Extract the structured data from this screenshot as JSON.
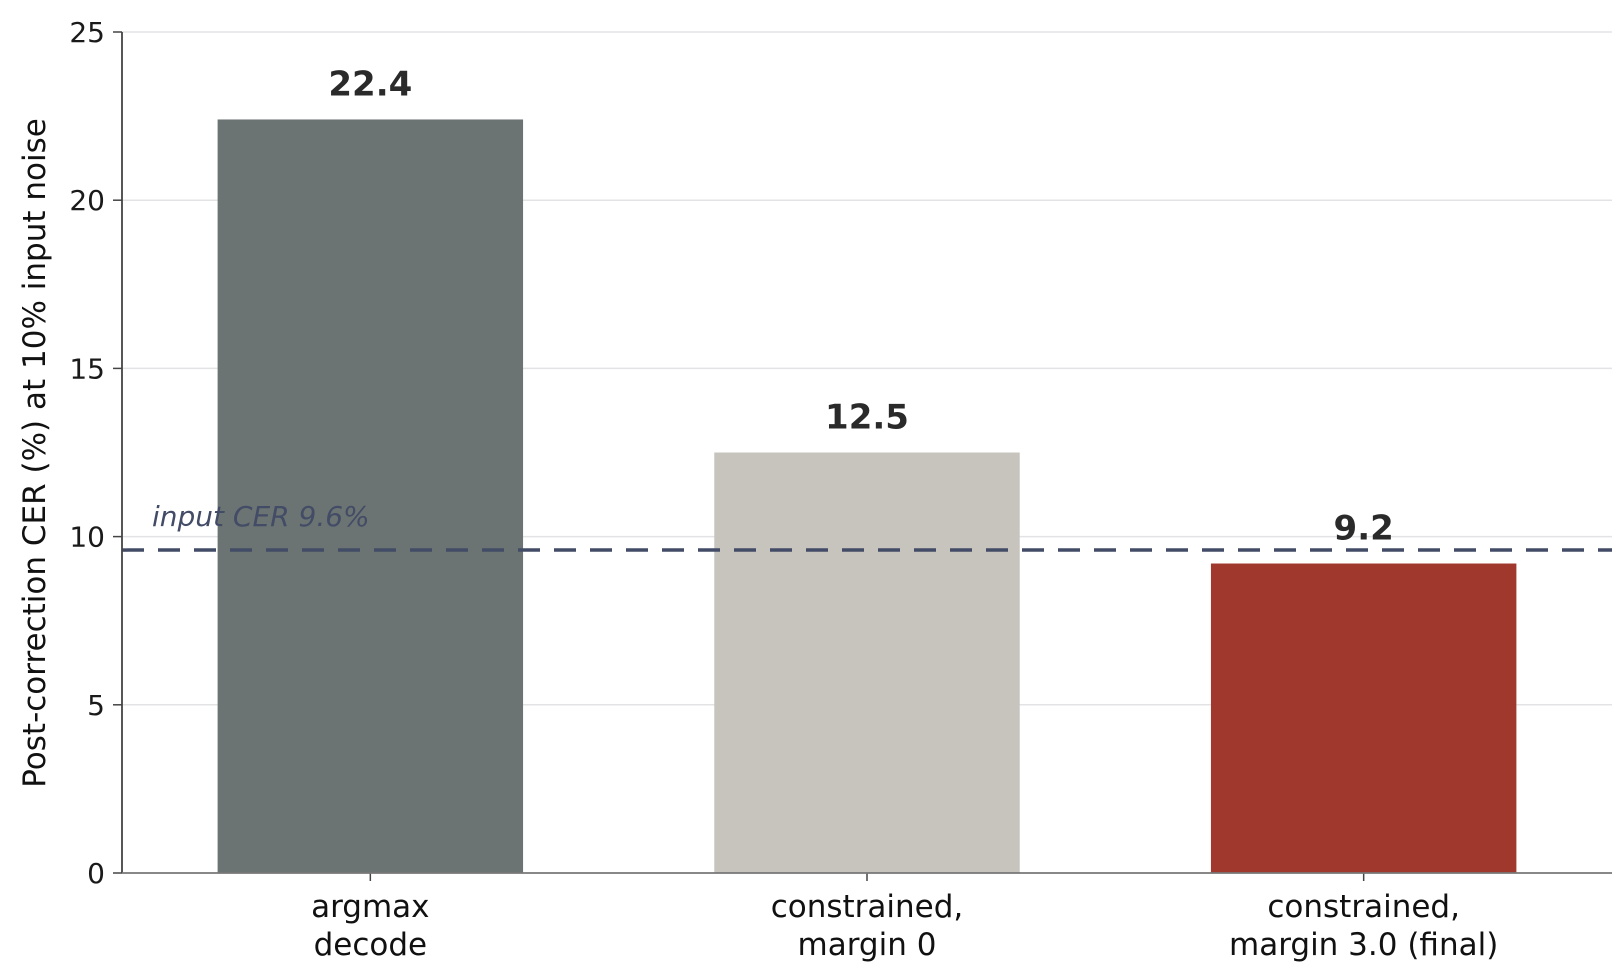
{
  "chart_data": {
    "type": "bar",
    "categories": [
      [
        "argmax",
        "decode"
      ],
      [
        "constrained,",
        "margin 0"
      ],
      [
        "constrained,",
        "margin 3.0 (final)"
      ]
    ],
    "values": [
      22.4,
      12.5,
      9.2
    ],
    "value_labels": [
      "22.4",
      "12.5",
      "9.2"
    ],
    "bar_colors": [
      "#6b7472",
      "#c6c4bd",
      "#a1382e"
    ],
    "ylabel": "Post-correction CER (%) at 10% input noise",
    "ylim": [
      0,
      25
    ],
    "yticks": [
      0,
      5,
      10,
      15,
      20,
      25
    ],
    "grid": "horizontal",
    "reference_line": {
      "value": 9.6,
      "label": "input CER  9.6%",
      "color": "#434c66",
      "style": "dashed"
    }
  }
}
